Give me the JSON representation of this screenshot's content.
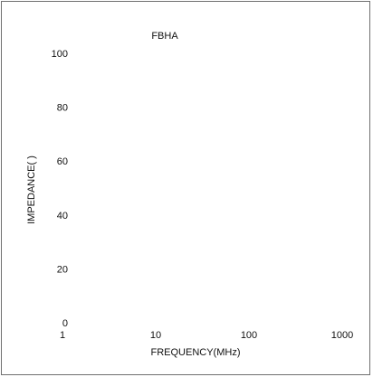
{
  "chart_data": {
    "type": "line",
    "title": "FBHA",
    "xlabel": "FREQUENCY(MHz)",
    "ylabel": "IMPEDANCE(  )",
    "x_scale": "log",
    "xlim": [
      1,
      1000
    ],
    "ylim": [
      0,
      100
    ],
    "x_ticks": [
      "1",
      "10",
      "100",
      "1000"
    ],
    "y_ticks": [
      "0",
      "20",
      "40",
      "60",
      "80",
      "100"
    ],
    "grid": false,
    "series": []
  }
}
